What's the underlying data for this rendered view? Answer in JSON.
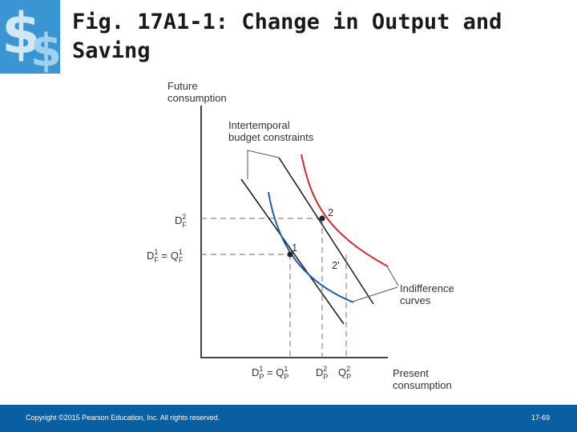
{
  "slide": {
    "title": "Fig. 17A1-1: Change in Output and Saving",
    "footer_copyright": "Copyright ©2015 Pearson Education, Inc. All rights reserved.",
    "page_number": "17-69"
  },
  "diagram": {
    "y_axis_label": [
      "Future",
      "consumption"
    ],
    "x_axis_label": [
      "Present",
      "consumption"
    ],
    "budget_label": [
      "Intertemporal",
      "budget constraints"
    ],
    "indifference_label": [
      "Indifference",
      "curves"
    ],
    "points": [
      "1",
      "2",
      "2'"
    ],
    "y_ticks": [
      {
        "main": "D",
        "sup": "2",
        "sub": "F",
        "suffix": ""
      },
      {
        "main": "D",
        "sup": "1",
        "sub": "F",
        "suffix": " = Q",
        "sup2": "1",
        "sub2": "F"
      }
    ],
    "x_ticks": [
      {
        "main": "D",
        "sup": "1",
        "sub": "P",
        "suffix": " = Q",
        "sup2": "1",
        "sub2": "P"
      },
      {
        "main": "D",
        "sup": "2",
        "sub": "P",
        "suffix": ""
      },
      {
        "main": "Q",
        "sup": "2",
        "sub": "P",
        "suffix": ""
      }
    ],
    "colors": {
      "budget_line": "#222222",
      "indifference_red": "#d42a32",
      "indifference_blue": "#1f5fa8",
      "dashed": "#888888",
      "footer_bg": "#0a5fa3"
    }
  }
}
